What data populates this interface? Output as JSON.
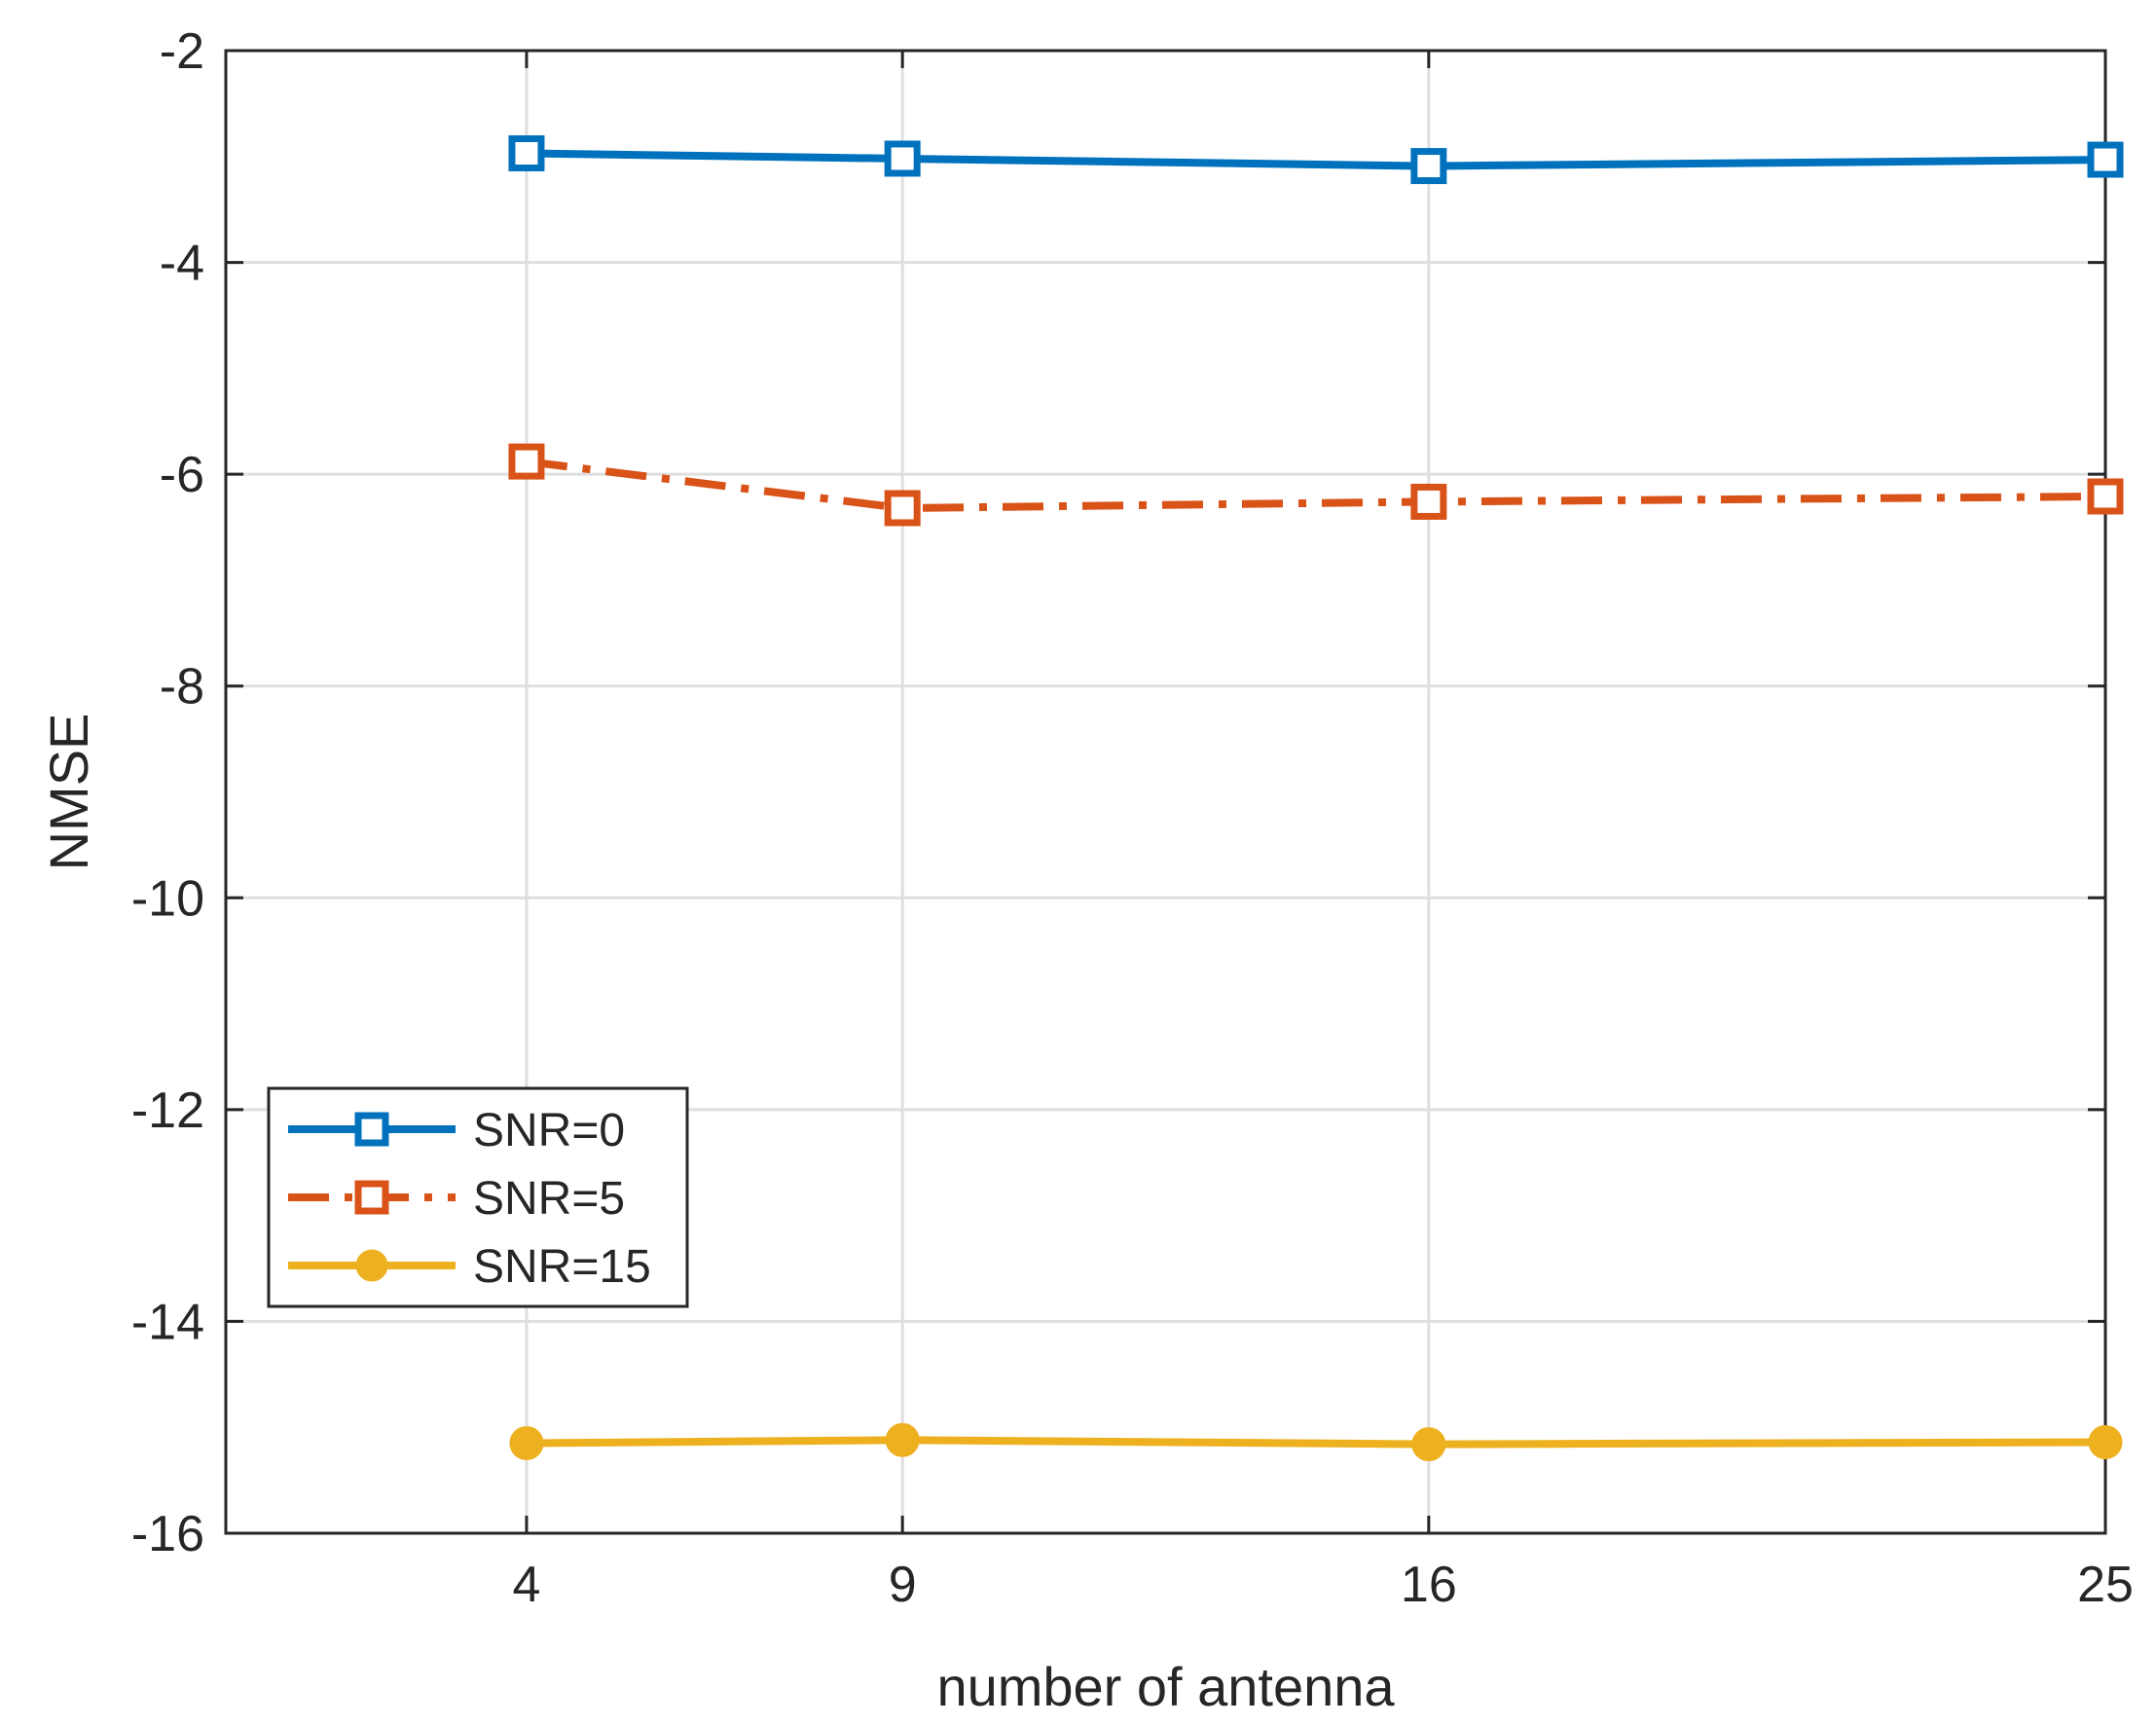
{
  "chart_data": {
    "type": "line",
    "title": "",
    "xlabel": "number of antenna",
    "ylabel": "NMSE",
    "x": [
      4,
      9,
      16,
      25
    ],
    "xlim": [
      0,
      25
    ],
    "ylim": [
      -16,
      -2
    ],
    "xticks": [
      4,
      9,
      16,
      25
    ],
    "yticks": [
      -16,
      -14,
      -12,
      -10,
      -8,
      -6,
      -4,
      -2
    ],
    "grid": true,
    "legend_position": "lower-left",
    "series": [
      {
        "name": "SNR=0",
        "values": [
          -2.97,
          -3.02,
          -3.09,
          -3.03
        ],
        "color": "#0072BD",
        "line_style": "solid",
        "marker": "square"
      },
      {
        "name": "SNR=5",
        "values": [
          -5.88,
          -6.32,
          -6.26,
          -6.21
        ],
        "color": "#D95319",
        "line_style": "dashdot",
        "marker": "square"
      },
      {
        "name": "SNR=15",
        "values": [
          -15.15,
          -15.12,
          -15.16,
          -15.14
        ],
        "color": "#EDB120",
        "line_style": "solid",
        "marker": "circle"
      }
    ]
  }
}
